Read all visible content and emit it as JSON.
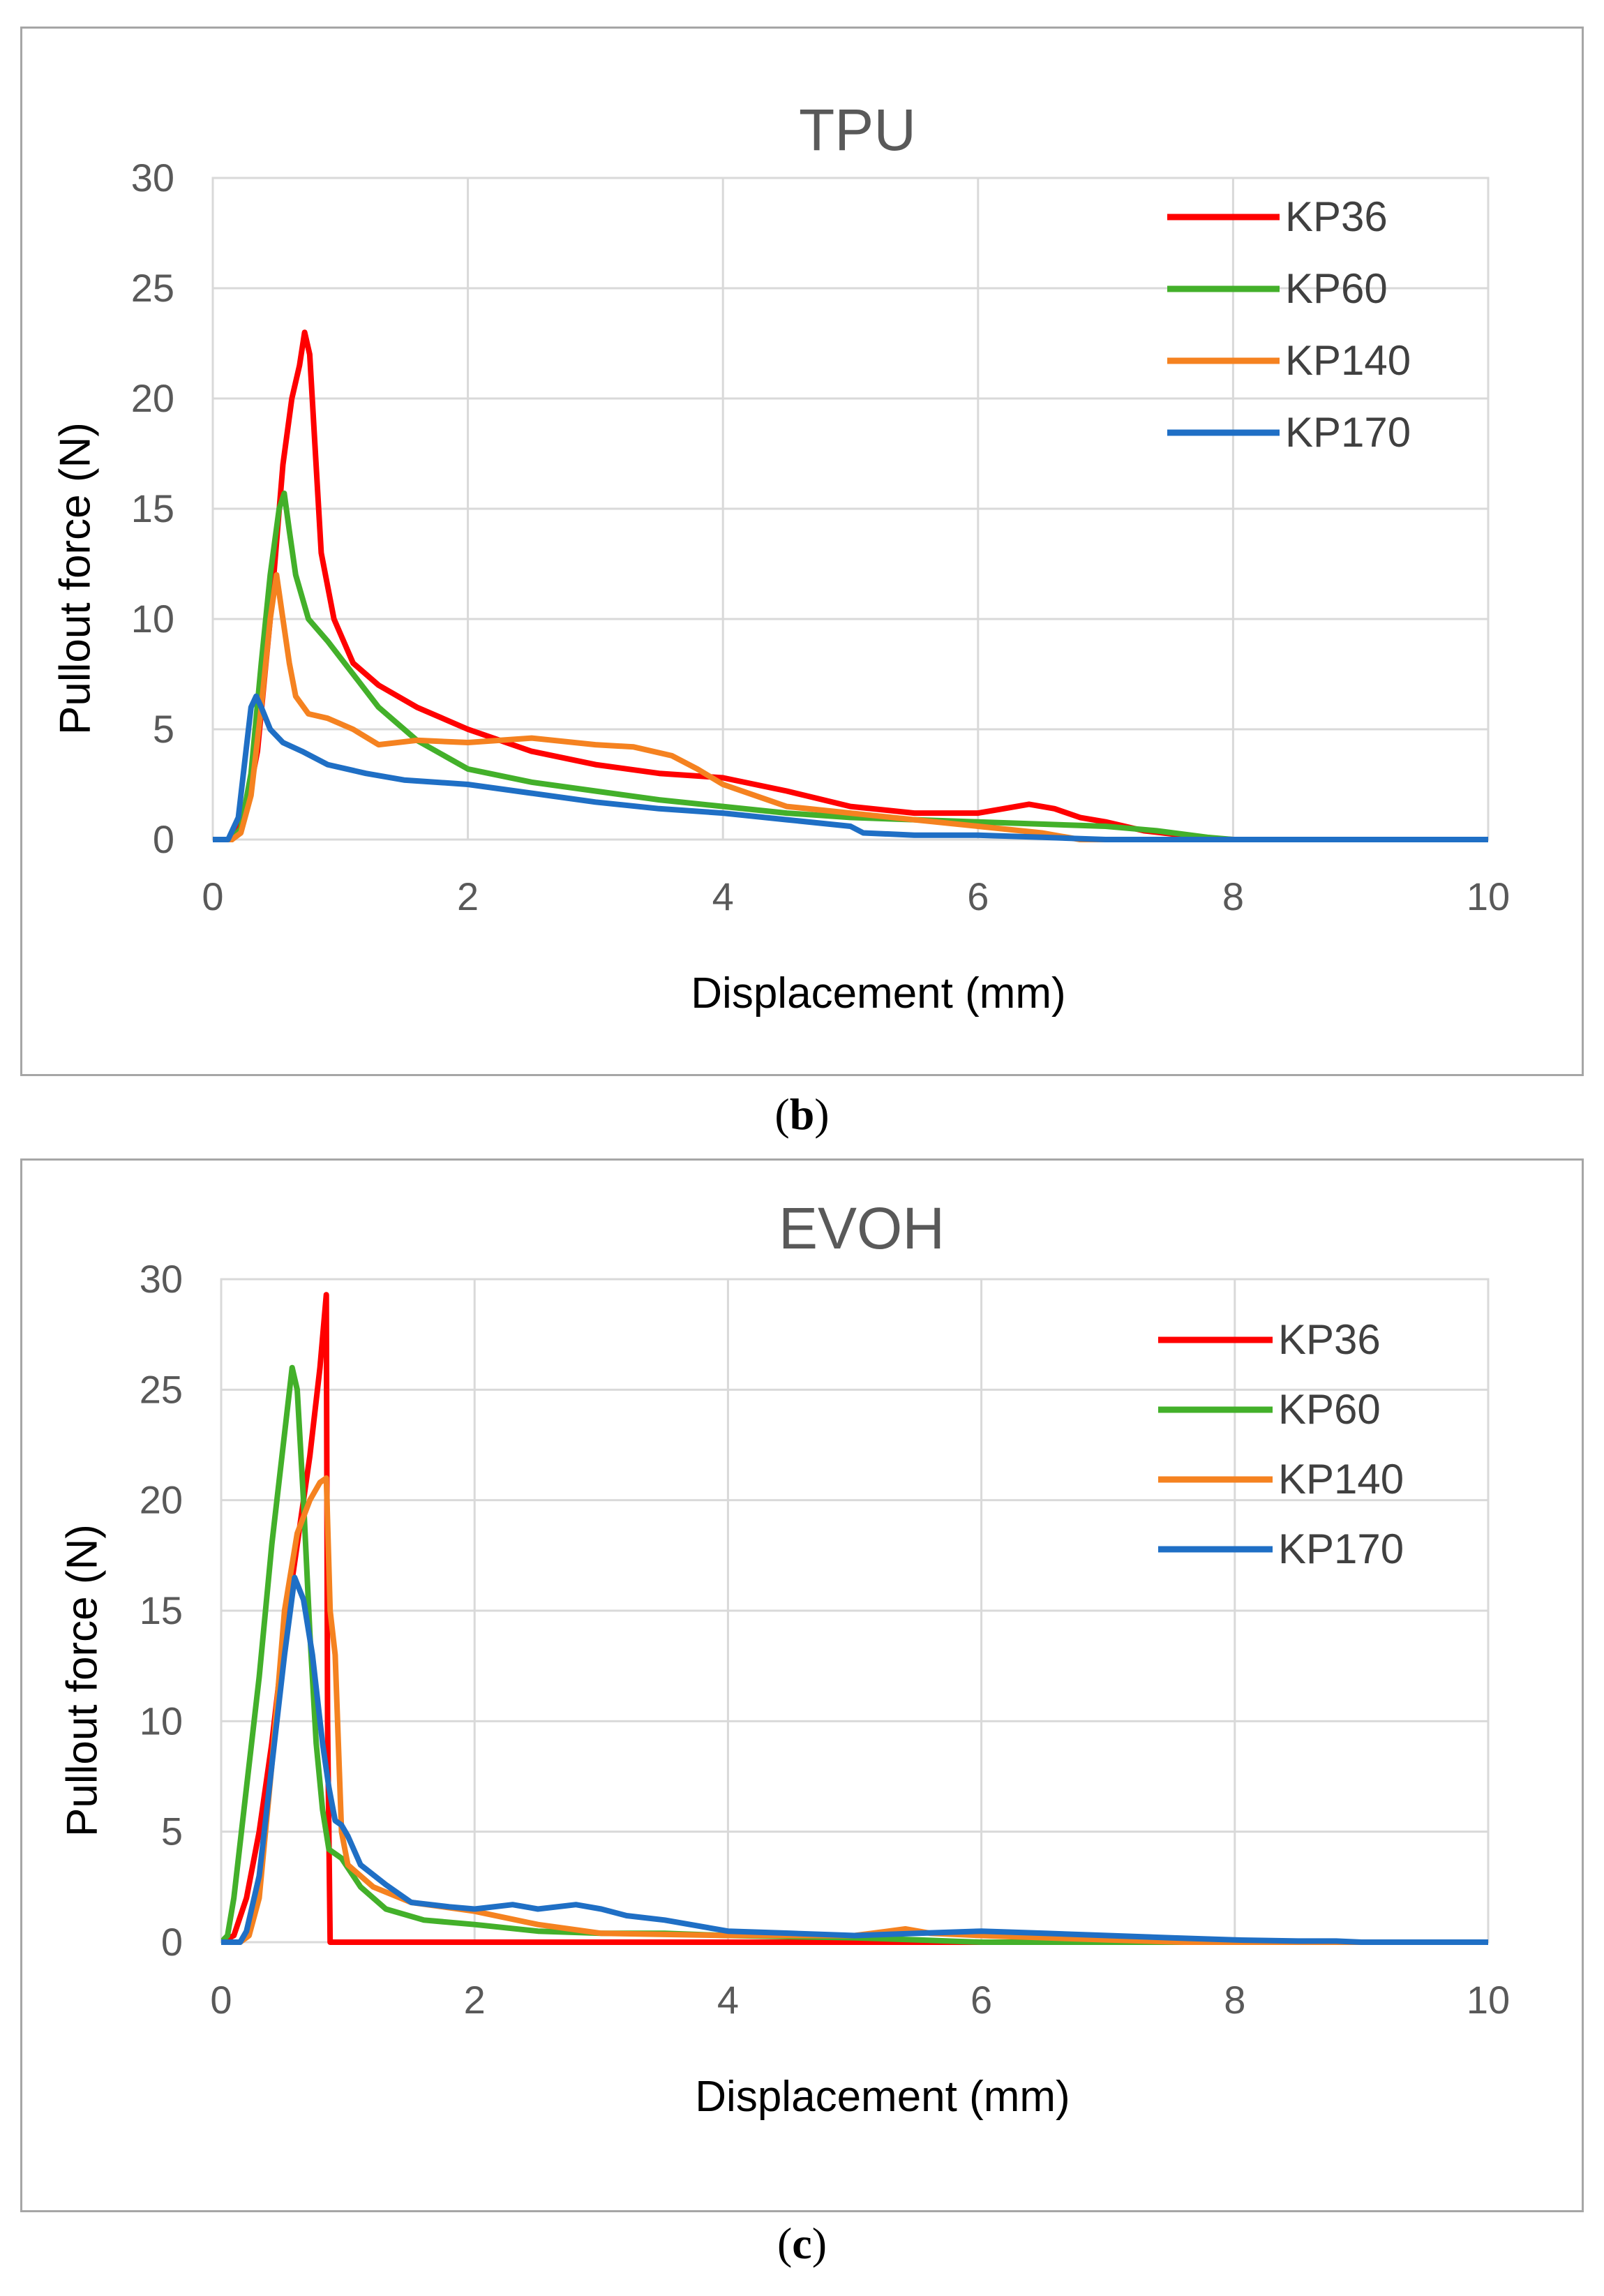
{
  "colors": {
    "KP36": "#ff0000",
    "KP60": "#43b02a",
    "KP140": "#f58220",
    "KP170": "#1f6fc5",
    "grid": "#d9d9d9",
    "axis_text": "#595959",
    "border": "#a6a6a6"
  },
  "captions": [
    {
      "open": "(",
      "letter": "b",
      "close": ")"
    },
    {
      "open": "(",
      "letter": "c",
      "close": ")"
    }
  ],
  "chart_data": [
    {
      "type": "line",
      "title": "TPU",
      "xlabel": "Displacement (mm)",
      "ylabel": "Pullout force (N)",
      "xlim": [
        0,
        10
      ],
      "ylim": [
        0,
        30
      ],
      "xticks": [
        "0",
        "2",
        "4",
        "6",
        "8",
        "10"
      ],
      "yticks": [
        "0",
        "5",
        "10",
        "15",
        "20",
        "25",
        "30"
      ],
      "grid": true,
      "legend_position": "top-right",
      "series": [
        {
          "name": "KP36",
          "color": "#ff0000",
          "x": [
            0,
            0.15,
            0.25,
            0.35,
            0.45,
            0.55,
            0.62,
            0.68,
            0.72,
            0.76,
            0.8,
            0.85,
            0.95,
            1.1,
            1.3,
            1.6,
            2.0,
            2.5,
            3.0,
            3.5,
            4.0,
            4.5,
            5.0,
            5.5,
            6.0,
            6.2,
            6.4,
            6.6,
            6.8,
            7.0,
            7.3,
            7.6,
            7.8,
            8.0,
            10.0
          ],
          "y": [
            0,
            0,
            1,
            4,
            10,
            17,
            20,
            21.5,
            23,
            22,
            18,
            13,
            10,
            8,
            7,
            6,
            5,
            4,
            3.4,
            3,
            2.8,
            2.2,
            1.5,
            1.2,
            1.2,
            1.4,
            1.6,
            1.4,
            1.0,
            0.8,
            0.4,
            0.2,
            0.05,
            0,
            0
          ]
        },
        {
          "name": "KP60",
          "color": "#43b02a",
          "x": [
            0,
            0.15,
            0.22,
            0.3,
            0.38,
            0.45,
            0.52,
            0.56,
            0.6,
            0.65,
            0.75,
            0.9,
            1.1,
            1.3,
            1.6,
            2.0,
            2.5,
            3.0,
            3.5,
            4.0,
            4.5,
            5.0,
            5.5,
            6.0,
            6.5,
            7.0,
            7.4,
            7.8,
            8.0,
            10.0
          ],
          "y": [
            0,
            0,
            0.5,
            3,
            8,
            12,
            15,
            15.7,
            14,
            12,
            10,
            9,
            7.5,
            6,
            4.5,
            3.2,
            2.6,
            2.2,
            1.8,
            1.5,
            1.2,
            1.0,
            0.9,
            0.8,
            0.7,
            0.6,
            0.4,
            0.1,
            0,
            0
          ]
        },
        {
          "name": "KP140",
          "color": "#f58220",
          "x": [
            0,
            0.15,
            0.22,
            0.3,
            0.38,
            0.45,
            0.5,
            0.55,
            0.6,
            0.65,
            0.75,
            0.9,
            1.1,
            1.3,
            1.6,
            2.0,
            2.5,
            3.0,
            3.3,
            3.6,
            3.8,
            4.0,
            4.5,
            5.0,
            5.5,
            6.0,
            6.5,
            6.8,
            10.0
          ],
          "y": [
            0,
            0,
            0.3,
            2,
            6,
            10,
            12,
            10,
            8,
            6.5,
            5.7,
            5.5,
            5,
            4.3,
            4.5,
            4.4,
            4.6,
            4.3,
            4.2,
            3.8,
            3.2,
            2.5,
            1.5,
            1.2,
            0.9,
            0.6,
            0.3,
            0,
            0
          ]
        },
        {
          "name": "KP170",
          "color": "#1f6fc5",
          "x": [
            0,
            0.12,
            0.2,
            0.26,
            0.3,
            0.34,
            0.38,
            0.45,
            0.55,
            0.7,
            0.9,
            1.2,
            1.5,
            2.0,
            2.5,
            3.0,
            3.5,
            4.0,
            4.5,
            5.0,
            5.1,
            5.5,
            6.0,
            6.5,
            7.0,
            10.0
          ],
          "y": [
            0,
            0,
            1,
            4,
            6,
            6.5,
            6,
            5,
            4.4,
            4,
            3.4,
            3,
            2.7,
            2.5,
            2.1,
            1.7,
            1.4,
            1.2,
            0.9,
            0.6,
            0.3,
            0.2,
            0.2,
            0.1,
            0,
            0
          ]
        }
      ]
    },
    {
      "type": "line",
      "title": "EVOH",
      "xlabel": "Displacement (mm)",
      "ylabel": "Pullout force (N)",
      "xlim": [
        0,
        10
      ],
      "ylim": [
        0,
        30
      ],
      "xticks": [
        "0",
        "2",
        "4",
        "6",
        "8",
        "10"
      ],
      "yticks": [
        "0",
        "5",
        "10",
        "15",
        "20",
        "25",
        "30"
      ],
      "grid": true,
      "legend_position": "top-right",
      "series": [
        {
          "name": "KP36",
          "color": "#ff0000",
          "x": [
            0,
            0.1,
            0.2,
            0.3,
            0.4,
            0.5,
            0.6,
            0.7,
            0.78,
            0.83,
            0.84,
            0.86,
            10.0
          ],
          "y": [
            0,
            0.3,
            2,
            5,
            9,
            14,
            18,
            22,
            26,
            29.3,
            10,
            0,
            0
          ]
        },
        {
          "name": "KP60",
          "color": "#43b02a",
          "x": [
            0,
            0.05,
            0.1,
            0.2,
            0.3,
            0.4,
            0.5,
            0.56,
            0.6,
            0.65,
            0.7,
            0.75,
            0.8,
            0.85,
            0.95,
            1.1,
            1.3,
            1.6,
            2.0,
            2.5,
            3.0,
            3.5,
            4.0,
            5.0,
            5.5,
            6.0,
            10.0
          ],
          "y": [
            0,
            0.3,
            2,
            7,
            12,
            18,
            23,
            26,
            25,
            20,
            14,
            9,
            6,
            4.2,
            3.8,
            2.5,
            1.5,
            1.0,
            0.8,
            0.5,
            0.4,
            0.4,
            0.3,
            0.2,
            0.1,
            0,
            0
          ]
        },
        {
          "name": "KP140",
          "color": "#f58220",
          "x": [
            0,
            0.15,
            0.22,
            0.3,
            0.4,
            0.5,
            0.6,
            0.7,
            0.78,
            0.83,
            0.86,
            0.9,
            0.95,
            1.0,
            1.2,
            1.5,
            2.0,
            2.5,
            3.0,
            4.0,
            5.0,
            5.4,
            5.6,
            6.0,
            7.0,
            7.6,
            10.0
          ],
          "y": [
            0,
            0,
            0.3,
            2,
            8,
            15,
            18.5,
            20,
            20.8,
            21,
            15,
            13,
            5,
            3.5,
            2.5,
            1.8,
            1.4,
            0.8,
            0.4,
            0.3,
            0.3,
            0.6,
            0.4,
            0.3,
            0.1,
            0,
            0
          ]
        },
        {
          "name": "KP170",
          "color": "#1f6fc5",
          "x": [
            0,
            0.15,
            0.2,
            0.3,
            0.4,
            0.5,
            0.58,
            0.65,
            0.72,
            0.8,
            0.85,
            0.9,
            0.95,
            1.0,
            1.1,
            1.3,
            1.5,
            1.8,
            2.0,
            2.3,
            2.5,
            2.8,
            3.0,
            3.2,
            3.5,
            4.0,
            4.5,
            5.0,
            5.5,
            6.0,
            6.5,
            7.0,
            7.5,
            8.0,
            8.5,
            8.8,
            9.0,
            10.0
          ],
          "y": [
            0,
            0,
            0.5,
            3,
            8,
            13,
            16.5,
            15.5,
            13,
            9,
            7,
            5.5,
            5.3,
            4.8,
            3.5,
            2.6,
            1.8,
            1.6,
            1.5,
            1.7,
            1.5,
            1.7,
            1.5,
            1.2,
            1.0,
            0.5,
            0.4,
            0.3,
            0.4,
            0.5,
            0.4,
            0.3,
            0.2,
            0.1,
            0.05,
            0.05,
            0,
            0
          ]
        }
      ]
    }
  ]
}
